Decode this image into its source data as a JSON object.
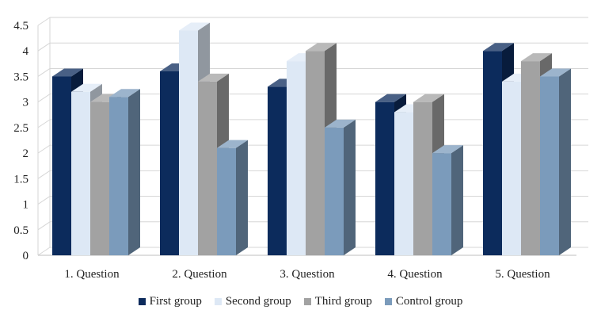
{
  "chart_data": {
    "type": "bar",
    "title": "",
    "xlabel": "",
    "ylabel": "",
    "categories": [
      "1. Question",
      "2. Question",
      "3. Question",
      "4. Question",
      "5. Question"
    ],
    "series": [
      {
        "name": "First group",
        "color": "#0c2b5c",
        "values": [
          3.5,
          3.6,
          3.3,
          3.0,
          4.0
        ]
      },
      {
        "name": "Second group",
        "color": "#dde8f5",
        "values": [
          3.2,
          4.4,
          3.8,
          2.8,
          3.4
        ]
      },
      {
        "name": "Third group",
        "color": "#a2a2a2",
        "values": [
          3.0,
          3.4,
          4.0,
          3.0,
          3.8
        ]
      },
      {
        "name": "Control group",
        "color": "#7b9bbb",
        "values": [
          3.1,
          2.1,
          2.5,
          2.0,
          3.5
        ]
      }
    ],
    "ylim": [
      0,
      4.5
    ],
    "yticks": [
      "0",
      "0.5",
      "1",
      "1.5",
      "2",
      "2.5",
      "3",
      "3.5",
      "4",
      "4.5"
    ],
    "grid": true,
    "legend_position": "bottom",
    "style": "3d-clustered-column"
  }
}
